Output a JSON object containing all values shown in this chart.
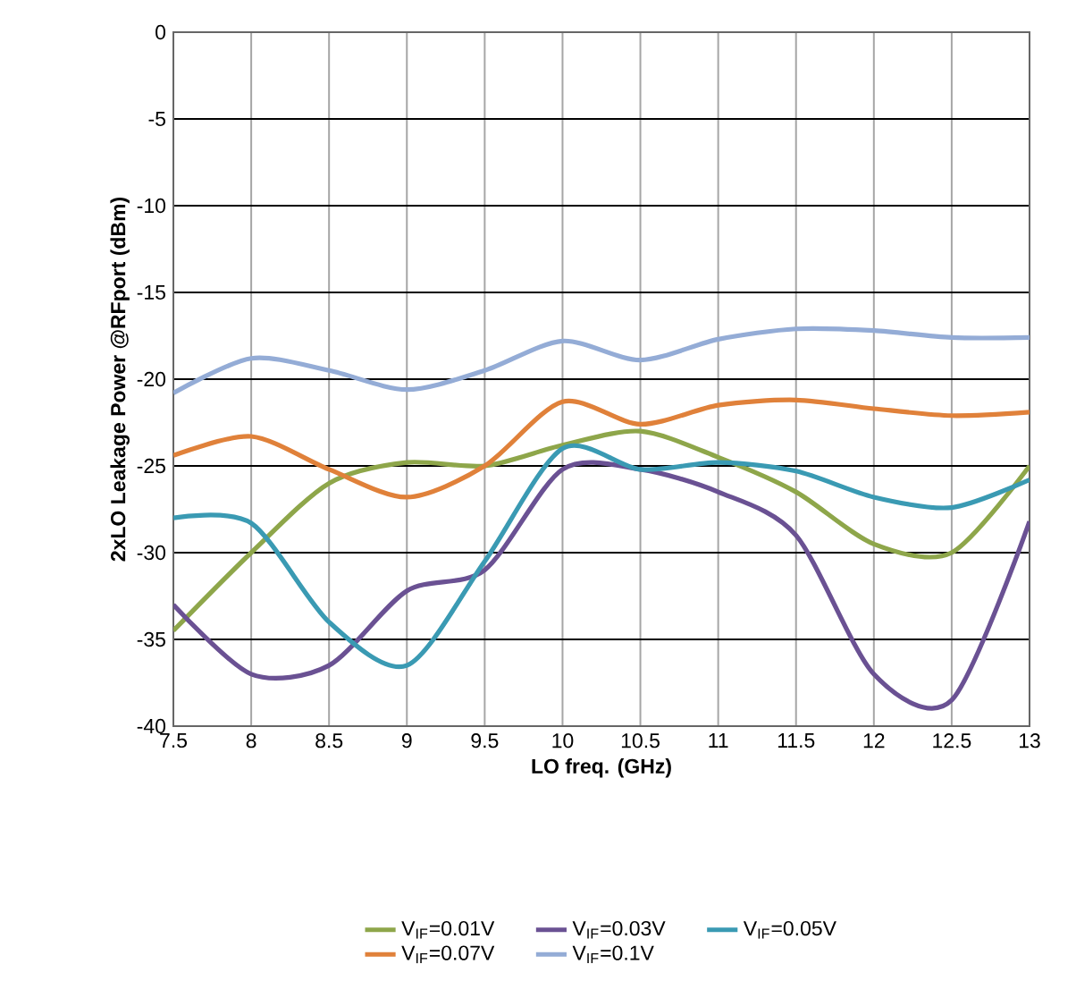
{
  "chart_data": {
    "type": "line",
    "xlabel": "LO freq. (GHz)",
    "ylabel": "2xLO Leakage Power @RFport (dBm)",
    "x": [
      7.5,
      8,
      8.5,
      9,
      9.5,
      10,
      10.5,
      11,
      11.5,
      12,
      12.5,
      13
    ],
    "series": [
      {
        "name": "V$_{IF}$=0.01V",
        "color": "#8ea64a",
        "values": [
          -34.5,
          -30,
          -26,
          -24.8,
          -25,
          -23.8,
          -23,
          -24.5,
          -26.5,
          -29.5,
          -30,
          -25
        ]
      },
      {
        "name": "V$_{IF}$=0.03V",
        "color": "#6a5193",
        "values": [
          -33,
          -37,
          -36.5,
          -32.2,
          -31,
          -25.2,
          -25.2,
          -26.5,
          -29,
          -37,
          -38.5,
          -28.2
        ]
      },
      {
        "name": "V$_{IF}$=0.05V",
        "color": "#3a9ab3",
        "values": [
          -28,
          -28.3,
          -34,
          -36.5,
          -30.5,
          -24,
          -25.2,
          -24.8,
          -25.3,
          -26.8,
          -27.4,
          -25.8
        ]
      },
      {
        "name": "V$_{IF}$=0.07V",
        "color": "#e0813a",
        "values": [
          -24.4,
          -23.3,
          -25.2,
          -26.8,
          -25,
          -21.3,
          -22.6,
          -21.5,
          -21.2,
          -21.7,
          -22.1,
          -21.9
        ]
      },
      {
        "name": "V$_{IF}$=0.1V",
        "color": "#94acd6",
        "values": [
          -20.8,
          -18.8,
          -19.5,
          -20.6,
          -19.5,
          -17.8,
          -18.9,
          -17.7,
          -17.1,
          -17.2,
          -17.6,
          -17.6
        ]
      }
    ],
    "xlim": [
      7.5,
      13
    ],
    "xticks": [
      7.5,
      8,
      8.5,
      9,
      9.5,
      10,
      10.5,
      11,
      11.5,
      12,
      12.5,
      13
    ],
    "ylim": [
      -40,
      0
    ],
    "yticks": [
      -40,
      -35,
      -30,
      -25,
      -20,
      -15,
      -10,
      -5,
      0
    ],
    "grid": true,
    "legend": "bottom",
    "line_style": "solid",
    "marker": "none"
  }
}
